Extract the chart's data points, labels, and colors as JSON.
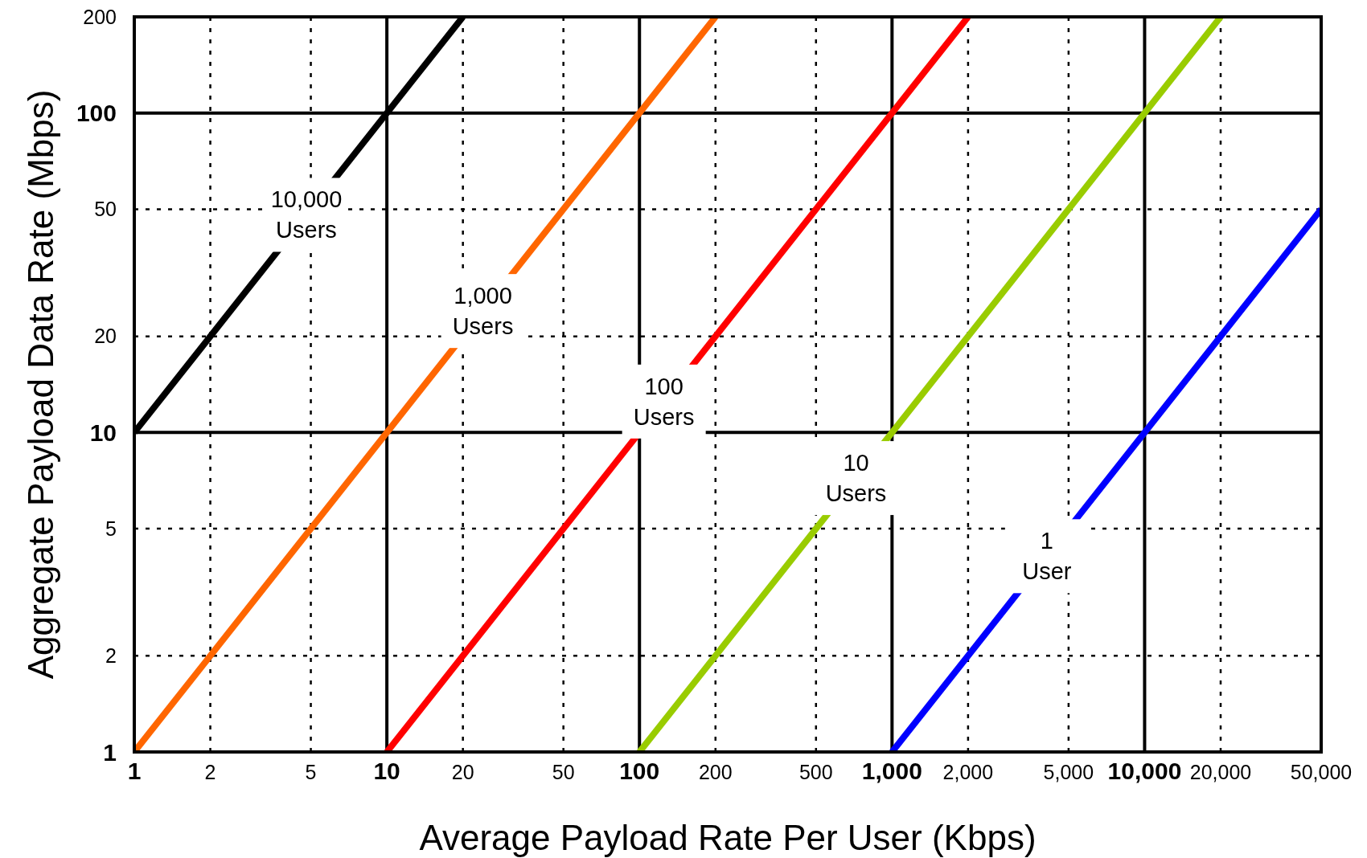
{
  "chart_data": {
    "type": "line",
    "xlabel": "Average Payload Rate Per User (Kbps)",
    "ylabel": "Aggregate Payload Data Rate (Mbps)",
    "log": "xy",
    "grid": true,
    "marker": "none",
    "line_style": "solid",
    "xlim": [
      1,
      50000
    ],
    "ylim": [
      1,
      200
    ],
    "xticks": [
      1,
      2,
      5,
      10,
      20,
      50,
      100,
      200,
      500,
      {
        "value": 1000,
        "label": "1,000"
      },
      {
        "value": 2000,
        "label": "2,000"
      },
      {
        "value": 5000,
        "label": "5,000"
      },
      {
        "value": 10000,
        "label": "10,000"
      },
      {
        "value": 20000,
        "label": "20,000"
      },
      {
        "value": 50000,
        "label": "50,000"
      }
    ],
    "yticks": [
      1,
      2,
      5,
      10,
      20,
      50,
      100,
      200
    ],
    "series": [
      {
        "color": "#000000",
        "x": [
          1,
          20
        ],
        "values": [
          10,
          200
        ]
      },
      {
        "color": "#ff6600",
        "x": [
          1,
          200
        ],
        "values": [
          1,
          200
        ]
      },
      {
        "color": "#ff0000",
        "x": [
          10,
          2000
        ],
        "values": [
          1,
          200
        ]
      },
      {
        "color": "#99cc00",
        "x": [
          100,
          20000
        ],
        "values": [
          1,
          200
        ]
      },
      {
        "color": "#0000ff",
        "x": [
          1000,
          50000
        ],
        "values": [
          1,
          50
        ]
      }
    ],
    "annotations": [
      {
        "text": "10,000 Users",
        "x": 4.8,
        "y": 48
      },
      {
        "text": "1,000 Users",
        "x": 24,
        "y": 24
      },
      {
        "text": "100 Users",
        "x": 125,
        "y": 12.5
      },
      {
        "text": "10 Users",
        "x": 720,
        "y": 7.2
      },
      {
        "text": "1 User",
        "x": 4100,
        "y": 4.1
      }
    ]
  }
}
